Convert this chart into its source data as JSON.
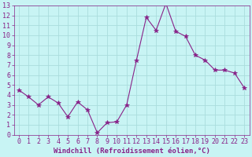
{
  "x": [
    0,
    1,
    2,
    3,
    4,
    5,
    6,
    7,
    8,
    9,
    10,
    11,
    12,
    13,
    14,
    15,
    16,
    17,
    18,
    19,
    20,
    21,
    22,
    23
  ],
  "y": [
    4.5,
    3.8,
    3.0,
    3.8,
    3.2,
    1.8,
    3.3,
    2.5,
    0.2,
    1.2,
    1.3,
    3.0,
    7.5,
    11.8,
    10.5,
    13.2,
    10.4,
    9.9,
    8.0,
    7.5,
    6.5,
    6.5,
    6.2,
    4.7
  ],
  "line_color": "#882288",
  "marker": "*",
  "marker_size": 4,
  "bg_color": "#c8f4f4",
  "grid_color": "#aadddd",
  "xlabel": "Windchill (Refroidissement éolien,°C)",
  "xlim": [
    -0.5,
    23.5
  ],
  "ylim": [
    0,
    13
  ],
  "yticks": [
    0,
    1,
    2,
    3,
    4,
    5,
    6,
    7,
    8,
    9,
    10,
    11,
    12,
    13
  ],
  "xticks": [
    0,
    1,
    2,
    3,
    4,
    5,
    6,
    7,
    8,
    9,
    10,
    11,
    12,
    13,
    14,
    15,
    16,
    17,
    18,
    19,
    20,
    21,
    22,
    23
  ],
  "xlabel_fontsize": 6.5,
  "tick_fontsize": 6,
  "label_color": "#882288",
  "spine_color": "#882288"
}
